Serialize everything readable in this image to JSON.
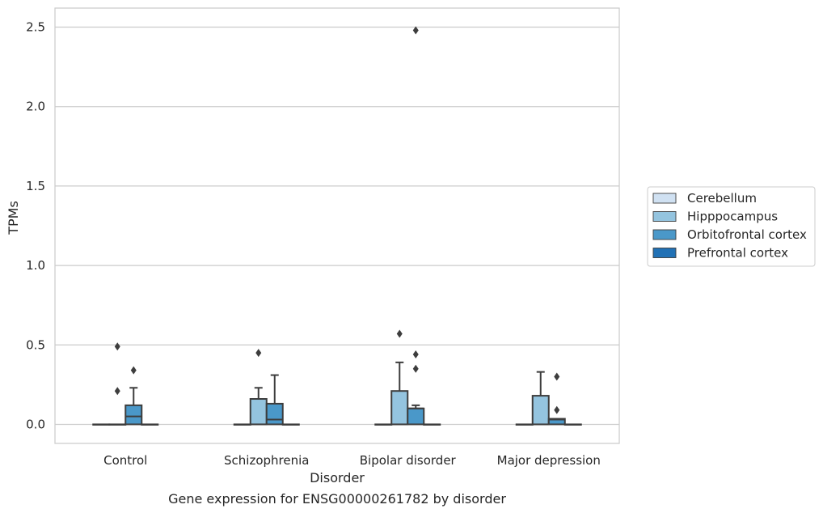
{
  "chart_data": {
    "type": "box",
    "title": "",
    "caption": "Gene expression for ENSG00000261782 by disorder",
    "xlabel": "Disorder",
    "ylabel": "TPMs",
    "categories": [
      "Control",
      "Schizophrenia",
      "Bipolar disorder",
      "Major depression"
    ],
    "ylim": [
      -0.12,
      2.62
    ],
    "yticks": [
      0.0,
      0.5,
      1.0,
      1.5,
      2.0,
      2.5
    ],
    "ytick_labels": [
      "0.0",
      "0.5",
      "1.0",
      "1.5",
      "2.0",
      "2.5"
    ],
    "grid": "horizontal",
    "legend_position": "right",
    "series": [
      {
        "name": "Cerebellum",
        "color": "#d0e1f2",
        "boxes": [
          {
            "category": "Control",
            "min": 0.0,
            "q1": 0.0,
            "median": 0.0,
            "q3": 0.0,
            "max": 0.0,
            "outliers": []
          },
          {
            "category": "Schizophrenia",
            "min": 0.0,
            "q1": 0.0,
            "median": 0.0,
            "q3": 0.0,
            "max": 0.0,
            "outliers": []
          },
          {
            "category": "Bipolar disorder",
            "min": 0.0,
            "q1": 0.0,
            "median": 0.0,
            "q3": 0.0,
            "max": 0.0,
            "outliers": []
          },
          {
            "category": "Major depression",
            "min": 0.0,
            "q1": 0.0,
            "median": 0.0,
            "q3": 0.0,
            "max": 0.0,
            "outliers": []
          }
        ]
      },
      {
        "name": "Hipppocampus",
        "color": "#94c4df",
        "boxes": [
          {
            "category": "Control",
            "min": 0.0,
            "q1": 0.0,
            "median": 0.0,
            "q3": 0.0,
            "max": 0.0,
            "outliers": [
              0.49,
              0.21
            ]
          },
          {
            "category": "Schizophrenia",
            "min": 0.0,
            "q1": 0.0,
            "median": 0.0,
            "q3": 0.16,
            "max": 0.23,
            "outliers": [
              0.45
            ]
          },
          {
            "category": "Bipolar disorder",
            "min": 0.0,
            "q1": 0.0,
            "median": 0.0,
            "q3": 0.21,
            "max": 0.39,
            "outliers": [
              0.57
            ]
          },
          {
            "category": "Major depression",
            "min": 0.0,
            "q1": 0.0,
            "median": 0.0,
            "q3": 0.18,
            "max": 0.33,
            "outliers": []
          }
        ]
      },
      {
        "name": "Orbitofrontal cortex",
        "color": "#4a98c9",
        "boxes": [
          {
            "category": "Control",
            "min": 0.0,
            "q1": 0.0,
            "median": 0.05,
            "q3": 0.12,
            "max": 0.23,
            "outliers": [
              0.34
            ]
          },
          {
            "category": "Schizophrenia",
            "min": 0.0,
            "q1": 0.0,
            "median": 0.03,
            "q3": 0.13,
            "max": 0.31,
            "outliers": []
          },
          {
            "category": "Bipolar disorder",
            "min": 0.0,
            "q1": 0.0,
            "median": 0.1,
            "q3": 0.1,
            "max": 0.12,
            "outliers": [
              2.48,
              0.44,
              0.35
            ]
          },
          {
            "category": "Major depression",
            "min": 0.0,
            "q1": 0.0,
            "median": 0.03,
            "q3": 0.035,
            "max": 0.035,
            "outliers": [
              0.3,
              0.09
            ]
          }
        ]
      },
      {
        "name": "Prefrontal cortex",
        "color": "#2171b5",
        "boxes": [
          {
            "category": "Control",
            "min": 0.0,
            "q1": 0.0,
            "median": 0.0,
            "q3": 0.0,
            "max": 0.0,
            "outliers": []
          },
          {
            "category": "Schizophrenia",
            "min": 0.0,
            "q1": 0.0,
            "median": 0.0,
            "q3": 0.0,
            "max": 0.0,
            "outliers": []
          },
          {
            "category": "Bipolar disorder",
            "min": 0.0,
            "q1": 0.0,
            "median": 0.0,
            "q3": 0.0,
            "max": 0.0,
            "outliers": []
          },
          {
            "category": "Major depression",
            "min": 0.0,
            "q1": 0.0,
            "median": 0.0,
            "q3": 0.0,
            "max": 0.0,
            "outliers": []
          }
        ]
      }
    ]
  }
}
